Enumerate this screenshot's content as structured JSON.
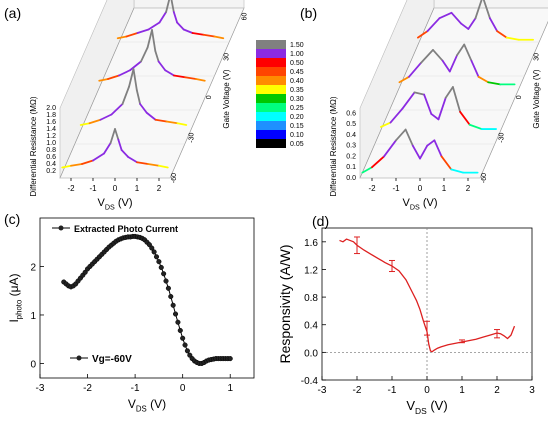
{
  "chart_data": [
    {
      "panel": "(a)",
      "type": "line",
      "projection": "3d-waterfall",
      "xlabel": "V",
      "xlabel_sub": "DS",
      "xlabel_unit": " (V)",
      "ylabel": "Gate Voltage (V)",
      "zlabel": "Differential Resistance (MΩ)",
      "x_ticks": [
        "-2",
        "-1",
        "0",
        "1",
        "2"
      ],
      "y_ticks": [
        "60",
        "30",
        "0",
        "-30",
        "-60"
      ],
      "z_ticks": [
        "2.0",
        "1.8",
        "1.6",
        "1.4",
        "1.2",
        "1.0",
        "0.8",
        "0.6",
        "0.4",
        "0.2"
      ],
      "xlim": [
        -2.5,
        2.5
      ],
      "zlim": [
        0,
        2.0
      ],
      "series": [
        {
          "gate_v": -60,
          "x": [
            -2.4,
            -2.0,
            -1.5,
            -1.0,
            -0.5,
            -0.2,
            0.0,
            0.15,
            0.3,
            0.6,
            1.0,
            1.5,
            2.0,
            2.4
          ],
          "values": [
            0.3,
            0.35,
            0.4,
            0.5,
            0.7,
            1.0,
            1.4,
            1.1,
            0.8,
            0.6,
            0.45,
            0.4,
            0.35,
            0.3
          ]
        },
        {
          "gate_v": -30,
          "x": [
            -2.4,
            -2.0,
            -1.5,
            -1.0,
            -0.5,
            -0.2,
            0.0,
            0.15,
            0.3,
            0.6,
            1.0,
            1.5,
            2.0,
            2.4
          ],
          "values": [
            0.3,
            0.35,
            0.45,
            0.6,
            0.9,
            1.4,
            1.9,
            1.3,
            0.9,
            0.65,
            0.45,
            0.4,
            0.35,
            0.3
          ]
        },
        {
          "gate_v": 0,
          "x": [
            -2.4,
            -2.0,
            -1.5,
            -1.0,
            -0.5,
            -0.2,
            0.0,
            0.15,
            0.3,
            0.6,
            1.0,
            1.5,
            2.0,
            2.4
          ],
          "values": [
            0.35,
            0.4,
            0.5,
            0.65,
            0.9,
            1.3,
            1.8,
            1.2,
            0.9,
            0.65,
            0.5,
            0.45,
            0.4,
            0.35
          ]
        },
        {
          "gate_v": 30,
          "x": [
            -2.4,
            -2.0,
            -1.5,
            -1.0,
            -0.5,
            -0.2,
            0.0,
            0.15,
            0.3,
            0.6,
            1.0,
            1.5,
            2.0,
            2.4
          ],
          "values": [
            0.35,
            0.4,
            0.5,
            0.6,
            0.8,
            1.1,
            1.6,
            1.1,
            0.8,
            0.6,
            0.5,
            0.45,
            0.4,
            0.35
          ]
        },
        {
          "gate_v": 60,
          "x": [
            -2.4,
            -2.0,
            -1.5,
            -1.0,
            -0.5,
            -0.2,
            0.0,
            0.15,
            0.3,
            0.6,
            1.0,
            1.5,
            2.0,
            2.4
          ],
          "values": [
            0.4,
            0.45,
            0.5,
            0.6,
            0.75,
            1.0,
            1.4,
            1.0,
            0.75,
            0.6,
            0.5,
            0.45,
            0.4,
            0.4
          ]
        }
      ]
    },
    {
      "panel": "(b)",
      "type": "line",
      "projection": "3d-waterfall",
      "xlabel": "V",
      "xlabel_sub": "DS",
      "xlabel_unit": " (V)",
      "ylabel": "Gate Voltage (V)",
      "zlabel": "Differential Resistance (MΩ)",
      "x_ticks": [
        "-2",
        "-1",
        "0",
        "1",
        "2"
      ],
      "y_ticks": [
        "60",
        "30",
        "0",
        "-30",
        "-60"
      ],
      "z_ticks": [
        "0.6",
        "0.5",
        "0.4",
        "0.3",
        "0.2",
        "0.1",
        "0.0"
      ],
      "xlim": [
        -2.5,
        2.5
      ],
      "zlim": [
        0,
        0.65
      ],
      "series": [
        {
          "gate_v": -60,
          "x": [
            -2.4,
            -2.0,
            -1.5,
            -1.0,
            -0.6,
            -0.3,
            0.0,
            0.3,
            0.6,
            0.9,
            1.3,
            1.8,
            2.4
          ],
          "values": [
            0.05,
            0.1,
            0.2,
            0.35,
            0.45,
            0.3,
            0.18,
            0.3,
            0.35,
            0.2,
            0.08,
            0.05,
            0.05
          ]
        },
        {
          "gate_v": -30,
          "x": [
            -2.4,
            -2.0,
            -1.5,
            -1.0,
            -0.6,
            -0.3,
            0.0,
            0.3,
            0.6,
            0.9,
            1.3,
            1.8,
            2.4
          ],
          "values": [
            0.08,
            0.12,
            0.25,
            0.4,
            0.38,
            0.2,
            0.15,
            0.35,
            0.45,
            0.22,
            0.1,
            0.06,
            0.06
          ]
        },
        {
          "gate_v": 0,
          "x": [
            -2.4,
            -2.0,
            -1.5,
            -1.0,
            -0.6,
            -0.3,
            0.0,
            0.3,
            0.6,
            0.9,
            1.3,
            1.8,
            2.4
          ],
          "values": [
            0.1,
            0.15,
            0.28,
            0.4,
            0.3,
            0.2,
            0.35,
            0.45,
            0.3,
            0.15,
            0.1,
            0.08,
            0.08
          ]
        },
        {
          "gate_v": 30,
          "x": [
            -2.4,
            -2.0,
            -1.5,
            -1.0,
            -0.6,
            -0.3,
            0.0,
            0.3,
            0.6,
            0.9,
            1.3,
            1.8,
            2.4
          ],
          "values": [
            0.12,
            0.18,
            0.3,
            0.35,
            0.25,
            0.2,
            0.3,
            0.5,
            0.3,
            0.18,
            0.12,
            0.1,
            0.1
          ]
        },
        {
          "gate_v": 60,
          "x": [
            -2.4,
            -2.0,
            -1.5,
            -1.0,
            -0.6,
            -0.3,
            0.0,
            0.3,
            0.6,
            0.9,
            1.3,
            1.8,
            2.4
          ],
          "values": [
            0.15,
            0.2,
            0.28,
            0.32,
            0.25,
            0.22,
            0.35,
            0.3,
            0.22,
            0.18,
            0.15,
            0.12,
            0.12
          ]
        }
      ]
    },
    {
      "panel": "(c)",
      "type": "line",
      "marker": "circle",
      "xlabel": "V",
      "xlabel_sub": "DS",
      "xlabel_unit": " (V)",
      "ylabel": "I",
      "ylabel_sub": "photo",
      "ylabel_unit": " (μA)",
      "legend": "Extracted Photo Current",
      "annotation": "Vg=-60V",
      "xlim": [
        -3,
        1.5
      ],
      "ylim": [
        -0.3,
        3.0
      ],
      "x_ticks": [
        "-3",
        "-2",
        "-1",
        "0",
        "1"
      ],
      "y_ticks": [
        "0",
        "1",
        "2"
      ],
      "x": [
        -2.5,
        -2.45,
        -2.4,
        -2.35,
        -2.3,
        -2.25,
        -2.2,
        -2.15,
        -2.1,
        -2.05,
        -2.0,
        -1.95,
        -1.9,
        -1.85,
        -1.8,
        -1.75,
        -1.7,
        -1.65,
        -1.6,
        -1.55,
        -1.5,
        -1.45,
        -1.4,
        -1.35,
        -1.3,
        -1.25,
        -1.2,
        -1.15,
        -1.1,
        -1.05,
        -1.0,
        -0.95,
        -0.9,
        -0.85,
        -0.8,
        -0.75,
        -0.7,
        -0.65,
        -0.6,
        -0.55,
        -0.5,
        -0.45,
        -0.4,
        -0.35,
        -0.3,
        -0.25,
        -0.2,
        -0.15,
        -0.1,
        -0.05,
        0.0,
        0.05,
        0.1,
        0.15,
        0.2,
        0.25,
        0.3,
        0.35,
        0.4,
        0.45,
        0.5,
        0.55,
        0.6,
        0.65,
        0.7,
        0.75,
        0.8,
        0.85,
        0.9,
        0.95,
        1.0
      ],
      "values": [
        1.68,
        1.64,
        1.6,
        1.58,
        1.6,
        1.64,
        1.7,
        1.76,
        1.82,
        1.88,
        1.95,
        2.0,
        2.05,
        2.1,
        2.15,
        2.2,
        2.25,
        2.3,
        2.35,
        2.4,
        2.44,
        2.48,
        2.52,
        2.55,
        2.57,
        2.59,
        2.6,
        2.61,
        2.61,
        2.62,
        2.62,
        2.61,
        2.6,
        2.58,
        2.55,
        2.5,
        2.45,
        2.38,
        2.3,
        2.2,
        2.1,
        1.98,
        1.85,
        1.7,
        1.55,
        1.38,
        1.2,
        1.02,
        0.85,
        0.68,
        0.52,
        0.38,
        0.26,
        0.17,
        0.1,
        0.05,
        0.02,
        0.0,
        0.0,
        0.02,
        0.05,
        0.07,
        0.08,
        0.09,
        0.1,
        0.1,
        0.1,
        0.1,
        0.1,
        0.1,
        0.1
      ]
    },
    {
      "panel": "(d)",
      "type": "line",
      "xlabel": "V",
      "xlabel_sub": "DS",
      "xlabel_unit": " (V)",
      "ylabel": "Responsivity (A/W)",
      "xlim": [
        -3,
        3
      ],
      "ylim": [
        -0.4,
        1.8
      ],
      "x_ticks": [
        "-3",
        "-2",
        "-1",
        "0",
        "1",
        "2",
        "3"
      ],
      "y_ticks": [
        "-0.4",
        "0.0",
        "0.4",
        "0.8",
        "1.2",
        "1.6"
      ],
      "x": [
        -2.5,
        -2.4,
        -2.3,
        -2.2,
        -2.1,
        -2.0,
        -1.8,
        -1.6,
        -1.4,
        -1.2,
        -1.0,
        -0.8,
        -0.6,
        -0.4,
        -0.3,
        -0.2,
        -0.1,
        0.0,
        0.05,
        0.1,
        0.15,
        0.2,
        0.3,
        0.4,
        0.6,
        0.8,
        1.0,
        1.2,
        1.4,
        1.6,
        1.8,
        2.0,
        2.1,
        2.2,
        2.3,
        2.4,
        2.5
      ],
      "values": [
        1.62,
        1.6,
        1.64,
        1.62,
        1.6,
        1.55,
        1.48,
        1.42,
        1.36,
        1.3,
        1.25,
        1.18,
        1.05,
        0.85,
        0.75,
        0.62,
        0.45,
        0.3,
        0.12,
        0.02,
        0.01,
        0.03,
        0.06,
        0.08,
        0.11,
        0.13,
        0.15,
        0.17,
        0.19,
        0.22,
        0.25,
        0.28,
        0.27,
        0.24,
        0.2,
        0.25,
        0.38
      ],
      "error_bars": [
        {
          "x": -2.0,
          "y": 1.55,
          "err": 0.12
        },
        {
          "x": -1.0,
          "y": 1.25,
          "err": 0.08
        },
        {
          "x": 0.0,
          "y": 0.35,
          "err": 0.1
        },
        {
          "x": 1.0,
          "y": 0.16,
          "err": 0.02
        },
        {
          "x": 2.0,
          "y": 0.27,
          "err": 0.06
        }
      ]
    }
  ],
  "colorbar": {
    "labels": [
      "1.50",
      "1.00",
      "0.50",
      "0.45",
      "0.40",
      "0.35",
      "0.30",
      "0.25",
      "0.20",
      "0.15",
      "0.10",
      "0.05"
    ],
    "colors": [
      "#808080",
      "#8b2be2",
      "#ff0000",
      "#ff4500",
      "#ff8c00",
      "#ffff00",
      "#00c800",
      "#00ff7f",
      "#00ffff",
      "#1e90ff",
      "#0000ff",
      "#000000"
    ]
  },
  "colors": {
    "line_d": "#dd2020",
    "guide": "#888888",
    "highlight": "#ffffcc"
  }
}
